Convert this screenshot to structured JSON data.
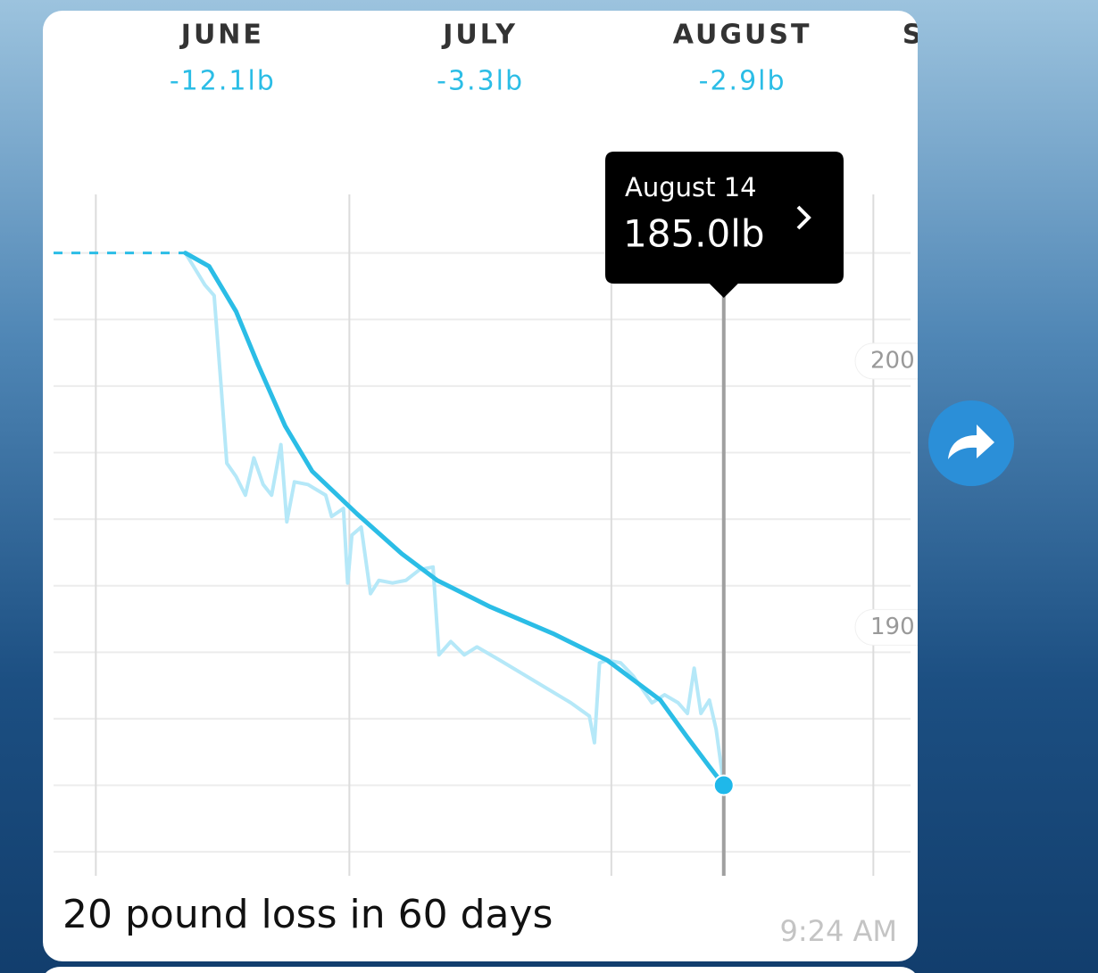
{
  "chart_data": {
    "type": "line",
    "months": [
      {
        "name": "JUNE",
        "change": "-12.1lb"
      },
      {
        "name": "JULY",
        "change": "-3.3lb"
      },
      {
        "name": "AUGUST",
        "change": "-2.9lb"
      },
      {
        "name": "SEPTEMBER"
      }
    ],
    "month_starts": [
      0,
      30,
      61,
      92
    ],
    "xlim": [
      -5,
      96.4
    ],
    "ylim": [
      181.6,
      207.2
    ],
    "yticks": [
      200,
      190
    ],
    "grid_lines": [
      205,
      202.5,
      200,
      197.5,
      195,
      192.5,
      190,
      187.5,
      185,
      182.5
    ],
    "series": [
      {
        "color": "#2bbde6",
        "style": "dashed",
        "x": [
          -5,
          10.6
        ],
        "values": [
          205,
          205
        ]
      },
      {
        "color": "#b5e8f8",
        "style": "raw",
        "x": [
          10.6,
          12.9,
          14.0,
          14.8,
          15.5,
          16.6,
          17.7,
          18.7,
          19.8,
          20.8,
          21.9,
          22.6,
          23.5,
          25.1,
          27.2,
          27.9,
          29.3,
          29.8,
          30.3,
          31.4,
          32.5,
          33.5,
          35.1,
          36.7,
          38.3,
          39.9,
          40.6,
          42.0,
          43.6,
          45.1,
          47.8,
          52.0,
          56.2,
          58.4,
          59.0,
          59.6,
          60.5,
          62.1,
          63.6,
          65.8,
          67.3,
          68.9,
          70.0,
          70.8,
          71.6,
          72.6,
          73.4,
          74.3
        ],
        "values": [
          205.0,
          203.8,
          203.4,
          200.1,
          197.1,
          196.6,
          195.9,
          197.3,
          196.3,
          195.9,
          197.8,
          194.9,
          196.4,
          196.3,
          195.9,
          195.1,
          195.4,
          192.6,
          194.4,
          194.7,
          192.2,
          192.7,
          192.6,
          192.7,
          193.1,
          193.2,
          189.9,
          190.4,
          189.9,
          190.2,
          189.7,
          188.9,
          188.1,
          187.6,
          186.6,
          189.6,
          189.7,
          189.6,
          189.1,
          188.1,
          188.4,
          188.1,
          187.7,
          189.4,
          187.7,
          188.2,
          187.1,
          185.0
        ]
      },
      {
        "color": "#2bbde6",
        "style": "trend",
        "x": [
          10.6,
          13.4,
          16.6,
          19.2,
          22.4,
          25.6,
          30.9,
          36.2,
          40.4,
          46.7,
          54.1,
          60.5,
          66.8,
          70.0,
          72.6,
          74.3
        ],
        "values": [
          205.0,
          204.5,
          202.8,
          200.8,
          198.5,
          196.8,
          195.2,
          193.7,
          192.7,
          191.7,
          190.7,
          189.7,
          188.2,
          186.8,
          185.7,
          185.0
        ]
      }
    ],
    "tooltip": {
      "title": "August 14",
      "label": "185.0lb",
      "x": 74.3,
      "value": 185.0
    }
  },
  "message": {
    "text": "20 pound loss in 60 days",
    "time": "9:24 AM"
  }
}
